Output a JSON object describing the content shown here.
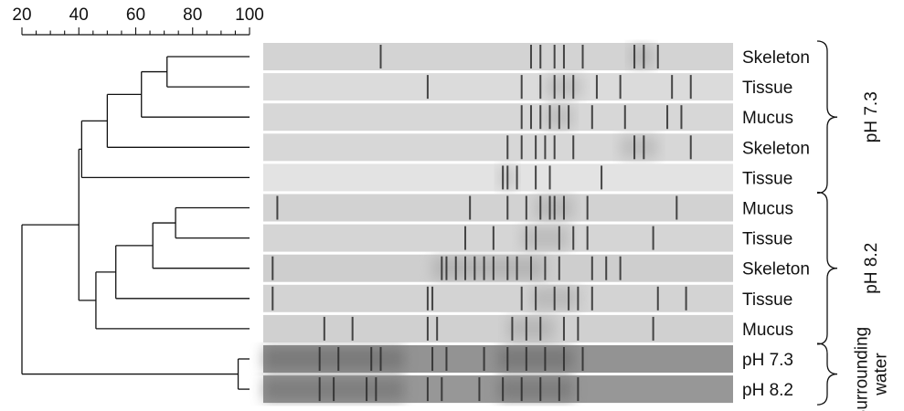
{
  "scale": {
    "ticks": [
      "20",
      "40",
      "60",
      "80",
      "100"
    ],
    "min": 20,
    "max": 100,
    "minor_step": 5
  },
  "lanes": [
    {
      "label": "Skeleton",
      "tone": 0.14,
      "bands": [
        0.25,
        0.57,
        0.59,
        0.62,
        0.64,
        0.68,
        0.79,
        0.81,
        0.84
      ],
      "dark_zones": [
        [
          0.78,
          0.83
        ]
      ]
    },
    {
      "label": "Tissue",
      "tone": 0.1,
      "bands": [
        0.35,
        0.55,
        0.59,
        0.62,
        0.64,
        0.66,
        0.71,
        0.76,
        0.87,
        0.91
      ],
      "dark_zones": [
        [
          0.6,
          0.68
        ]
      ]
    },
    {
      "label": "Mucus",
      "tone": 0.12,
      "bands": [
        0.55,
        0.57,
        0.59,
        0.61,
        0.63,
        0.65,
        0.7,
        0.77,
        0.86,
        0.89
      ],
      "dark_zones": [
        [
          0.6,
          0.66
        ]
      ]
    },
    {
      "label": "Skeleton",
      "tone": 0.12,
      "bands": [
        0.52,
        0.55,
        0.58,
        0.6,
        0.62,
        0.66,
        0.79,
        0.81,
        0.91
      ],
      "dark_zones": [
        [
          0.76,
          0.84
        ]
      ]
    },
    {
      "label": "Tissue",
      "tone": 0.06,
      "bands": [
        0.51,
        0.52,
        0.54,
        0.58,
        0.61,
        0.72
      ],
      "dark_zones": [
        [
          0.5,
          0.54
        ]
      ]
    },
    {
      "label": "Mucus",
      "tone": 0.15,
      "bands": [
        0.03,
        0.44,
        0.52,
        0.56,
        0.59,
        0.61,
        0.62,
        0.64,
        0.69,
        0.88
      ],
      "dark_zones": [
        [
          0.58,
          0.66
        ]
      ]
    },
    {
      "label": "Tissue",
      "tone": 0.13,
      "bands": [
        0.43,
        0.49,
        0.56,
        0.58,
        0.63,
        0.66,
        0.69,
        0.83
      ],
      "dark_zones": [
        [
          0.55,
          0.65
        ]
      ]
    },
    {
      "label": "Skeleton",
      "tone": 0.17,
      "bands": [
        0.02,
        0.38,
        0.39,
        0.41,
        0.43,
        0.45,
        0.47,
        0.49,
        0.52,
        0.54,
        0.57,
        0.6,
        0.63,
        0.7,
        0.73,
        0.76
      ],
      "dark_zones": [
        [
          0.36,
          0.6
        ]
      ]
    },
    {
      "label": "Tissue",
      "tone": 0.14,
      "bands": [
        0.02,
        0.35,
        0.36,
        0.55,
        0.58,
        0.62,
        0.65,
        0.67,
        0.7,
        0.84,
        0.9
      ],
      "dark_zones": [
        [
          0.57,
          0.67
        ]
      ]
    },
    {
      "label": "Mucus",
      "tone": 0.16,
      "bands": [
        0.13,
        0.19,
        0.35,
        0.37,
        0.53,
        0.56,
        0.59,
        0.64,
        0.67,
        0.83
      ],
      "dark_zones": [
        [
          0.52,
          0.62
        ]
      ]
    },
    {
      "label": "pH 7.3",
      "tone": 0.48,
      "bands": [
        0.12,
        0.16,
        0.23,
        0.25,
        0.36,
        0.39,
        0.47,
        0.52,
        0.56,
        0.6,
        0.64,
        0.68
      ],
      "dark_zones": [
        [
          0.0,
          0.3
        ],
        [
          0.5,
          0.66
        ]
      ]
    },
    {
      "label": "pH 8.2",
      "tone": 0.46,
      "bands": [
        0.12,
        0.15,
        0.22,
        0.24,
        0.35,
        0.38,
        0.46,
        0.51,
        0.55,
        0.59,
        0.63,
        0.67
      ],
      "dark_zones": [
        [
          0.0,
          0.3
        ],
        [
          0.5,
          0.66
        ]
      ]
    }
  ],
  "groups": [
    {
      "label": "pH 7.3",
      "lines": [
        "pH 7.3"
      ],
      "from_lane": 0,
      "to_lane": 4
    },
    {
      "label": "pH 8.2",
      "lines": [
        "pH 8.2"
      ],
      "from_lane": 5,
      "to_lane": 9
    },
    {
      "label": "Surrounding water",
      "lines": [
        "Surrounding",
        "water"
      ],
      "from_lane": 10,
      "to_lane": 11
    }
  ],
  "tree": {
    "merges": [
      {
        "a": 0,
        "b": 1,
        "similarity": 71
      },
      {
        "a": "m0",
        "b": 2,
        "similarity": 62
      },
      {
        "a": "m1",
        "b": 3,
        "similarity": 50
      },
      {
        "a": "m2",
        "b": 4,
        "similarity": 41
      },
      {
        "a": 5,
        "b": 6,
        "similarity": 74
      },
      {
        "a": "m4",
        "b": 7,
        "similarity": 66
      },
      {
        "a": "m5",
        "b": 8,
        "similarity": 53
      },
      {
        "a": "m6",
        "b": 9,
        "similarity": 46
      },
      {
        "a": "m3",
        "b": "m7",
        "similarity": 40
      },
      {
        "a": 10,
        "b": 11,
        "similarity": 96
      },
      {
        "a": "m8",
        "b": "m9",
        "similarity": 20
      }
    ]
  }
}
